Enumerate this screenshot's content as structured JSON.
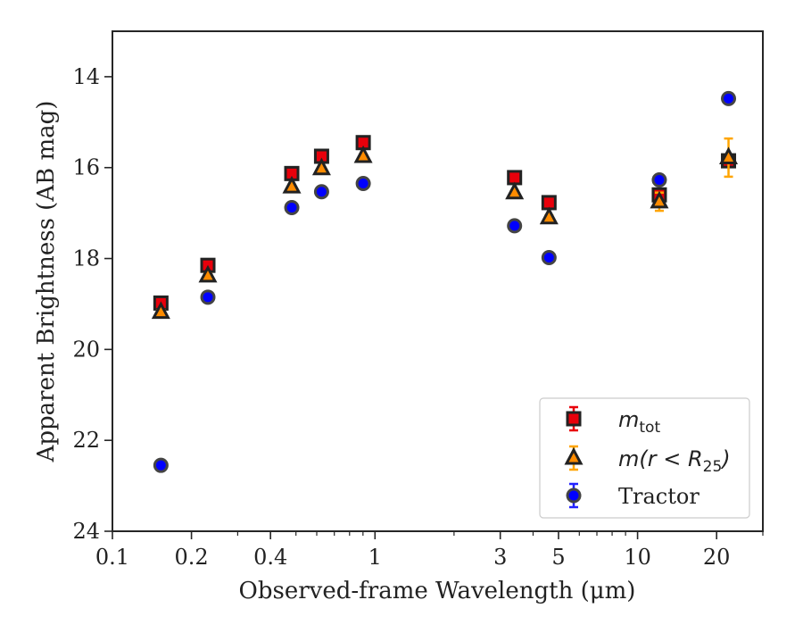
{
  "chart_data": {
    "type": "scatter",
    "xlabel": "Observed-frame Wavelength (μm)",
    "ylabel": "Apparent Brightness (AB mag)",
    "x_scale": "log",
    "xlim": [
      0.1,
      30
    ],
    "ylim": [
      24,
      13
    ],
    "y_inverted": true,
    "grid": false,
    "legend_position": "bottom-right",
    "x_tick_labels": [
      "0.1",
      "0.2",
      "0.4",
      "1",
      "3",
      "5",
      "10",
      "20"
    ],
    "x_ticks": [
      0.1,
      0.2,
      0.4,
      1,
      3,
      5,
      10,
      20
    ],
    "y_tick_labels": [
      "14",
      "16",
      "18",
      "20",
      "22",
      "24"
    ],
    "y_ticks": [
      14,
      16,
      18,
      20,
      22,
      24
    ],
    "series": [
      {
        "name": "m_tot",
        "label_main": "m",
        "label_sub": "tot",
        "marker": "square",
        "color": "#e8000b",
        "edge": "#222222",
        "errcolor": "#e8000b",
        "points": [
          {
            "x": 0.153,
            "y": 18.98,
            "err": 0.05
          },
          {
            "x": 0.231,
            "y": 18.15,
            "err": 0.05
          },
          {
            "x": 0.482,
            "y": 16.13,
            "err": 0.04
          },
          {
            "x": 0.626,
            "y": 15.75,
            "err": 0.04
          },
          {
            "x": 0.902,
            "y": 15.45,
            "err": 0.04
          },
          {
            "x": 3.4,
            "y": 16.22,
            "err": 0.04
          },
          {
            "x": 4.6,
            "y": 16.77,
            "err": 0.05
          },
          {
            "x": 12.1,
            "y": 16.6,
            "err": 0.08
          },
          {
            "x": 22.2,
            "y": 15.85,
            "err": 0.1
          }
        ]
      },
      {
        "name": "m(r < R_25)",
        "label_main": "m(r < R",
        "label_sub": "25",
        "label_tail": ")",
        "marker": "triangle",
        "color": "#ff8c00",
        "edge": "#222222",
        "errcolor": "#ffa500",
        "points": [
          {
            "x": 0.153,
            "y": 19.18,
            "err": 0.05
          },
          {
            "x": 0.231,
            "y": 18.38,
            "err": 0.05
          },
          {
            "x": 0.482,
            "y": 16.42,
            "err": 0.04
          },
          {
            "x": 0.626,
            "y": 16.02,
            "err": 0.04
          },
          {
            "x": 0.902,
            "y": 15.75,
            "err": 0.04
          },
          {
            "x": 3.4,
            "y": 16.55,
            "err": 0.04
          },
          {
            "x": 4.6,
            "y": 17.1,
            "err": 0.05
          },
          {
            "x": 12.1,
            "y": 16.75,
            "err": 0.2
          },
          {
            "x": 22.2,
            "y": 15.78,
            "err": 0.42
          }
        ]
      },
      {
        "name": "Tractor",
        "label_main": "Tractor",
        "marker": "circle",
        "color": "#0000ff",
        "edge": "#444444",
        "errcolor": "#2222ff",
        "points": [
          {
            "x": 0.153,
            "y": 22.55,
            "err": 0.08
          },
          {
            "x": 0.231,
            "y": 18.85,
            "err": 0.05
          },
          {
            "x": 0.482,
            "y": 16.88,
            "err": 0.04
          },
          {
            "x": 0.626,
            "y": 16.53,
            "err": 0.04
          },
          {
            "x": 0.902,
            "y": 16.35,
            "err": 0.04
          },
          {
            "x": 3.4,
            "y": 17.28,
            "err": 0.04
          },
          {
            "x": 4.6,
            "y": 17.98,
            "err": 0.05
          },
          {
            "x": 12.1,
            "y": 16.27,
            "err": 0.05
          },
          {
            "x": 22.2,
            "y": 14.48,
            "err": 0.05
          }
        ]
      }
    ]
  }
}
